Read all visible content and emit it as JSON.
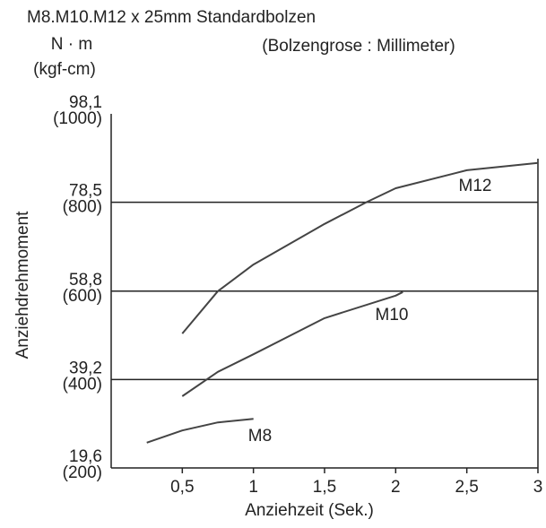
{
  "chart_data": {
    "type": "line",
    "title": "M8.M10.M12 x 25mm Standardbolzen",
    "y_unit": "N · m",
    "y_unit_alt": "(kgf-cm)",
    "subtitle": "(Bolzengrose : Millimeter)",
    "ylabel": "Anziehdrehmoment",
    "xlabel": "Anziehzeit (Sek.)",
    "xlim": [
      0,
      3
    ],
    "xticks": [
      {
        "value": 0.5,
        "label": "0,5"
      },
      1,
      {
        "value": 1.5,
        "label": "1,5"
      },
      2,
      {
        "value": 2.5,
        "label": "2,5"
      },
      3
    ],
    "ylim": [
      19.6,
      98.1
    ],
    "yticks": [
      {
        "value": 19.6,
        "label": "19,6"
      },
      {
        "value": 39.2,
        "label": "39,2"
      },
      {
        "value": 58.8,
        "label": "58,8"
      },
      {
        "value": 78.5,
        "label": "78,5"
      },
      {
        "value": 98.1,
        "label": "98,1"
      }
    ],
    "ytick_alt_labels": [
      "(200)",
      "(400)",
      "(600)",
      "(800)",
      "(1000)"
    ],
    "grid": true,
    "series": [
      {
        "name": "M12",
        "color": "#444444",
        "x": [
          0.5,
          0.75,
          1,
          1.5,
          1.8,
          2,
          2.5,
          3
        ],
        "values": [
          49.4,
          58.8,
          64.7,
          73.7,
          78.6,
          81.6,
          85.6,
          87.2
        ]
      },
      {
        "name": "M10",
        "color": "#444444",
        "x": [
          0.5,
          0.75,
          1,
          1.5,
          2,
          2.05
        ],
        "values": [
          35.5,
          40.9,
          44.8,
          52.8,
          57.8,
          58.6
        ]
      },
      {
        "name": "M8",
        "color": "#444444",
        "x": [
          0.25,
          0.5,
          0.75,
          1
        ],
        "values": [
          25.2,
          27.9,
          29.7,
          30.5
        ]
      }
    ]
  }
}
